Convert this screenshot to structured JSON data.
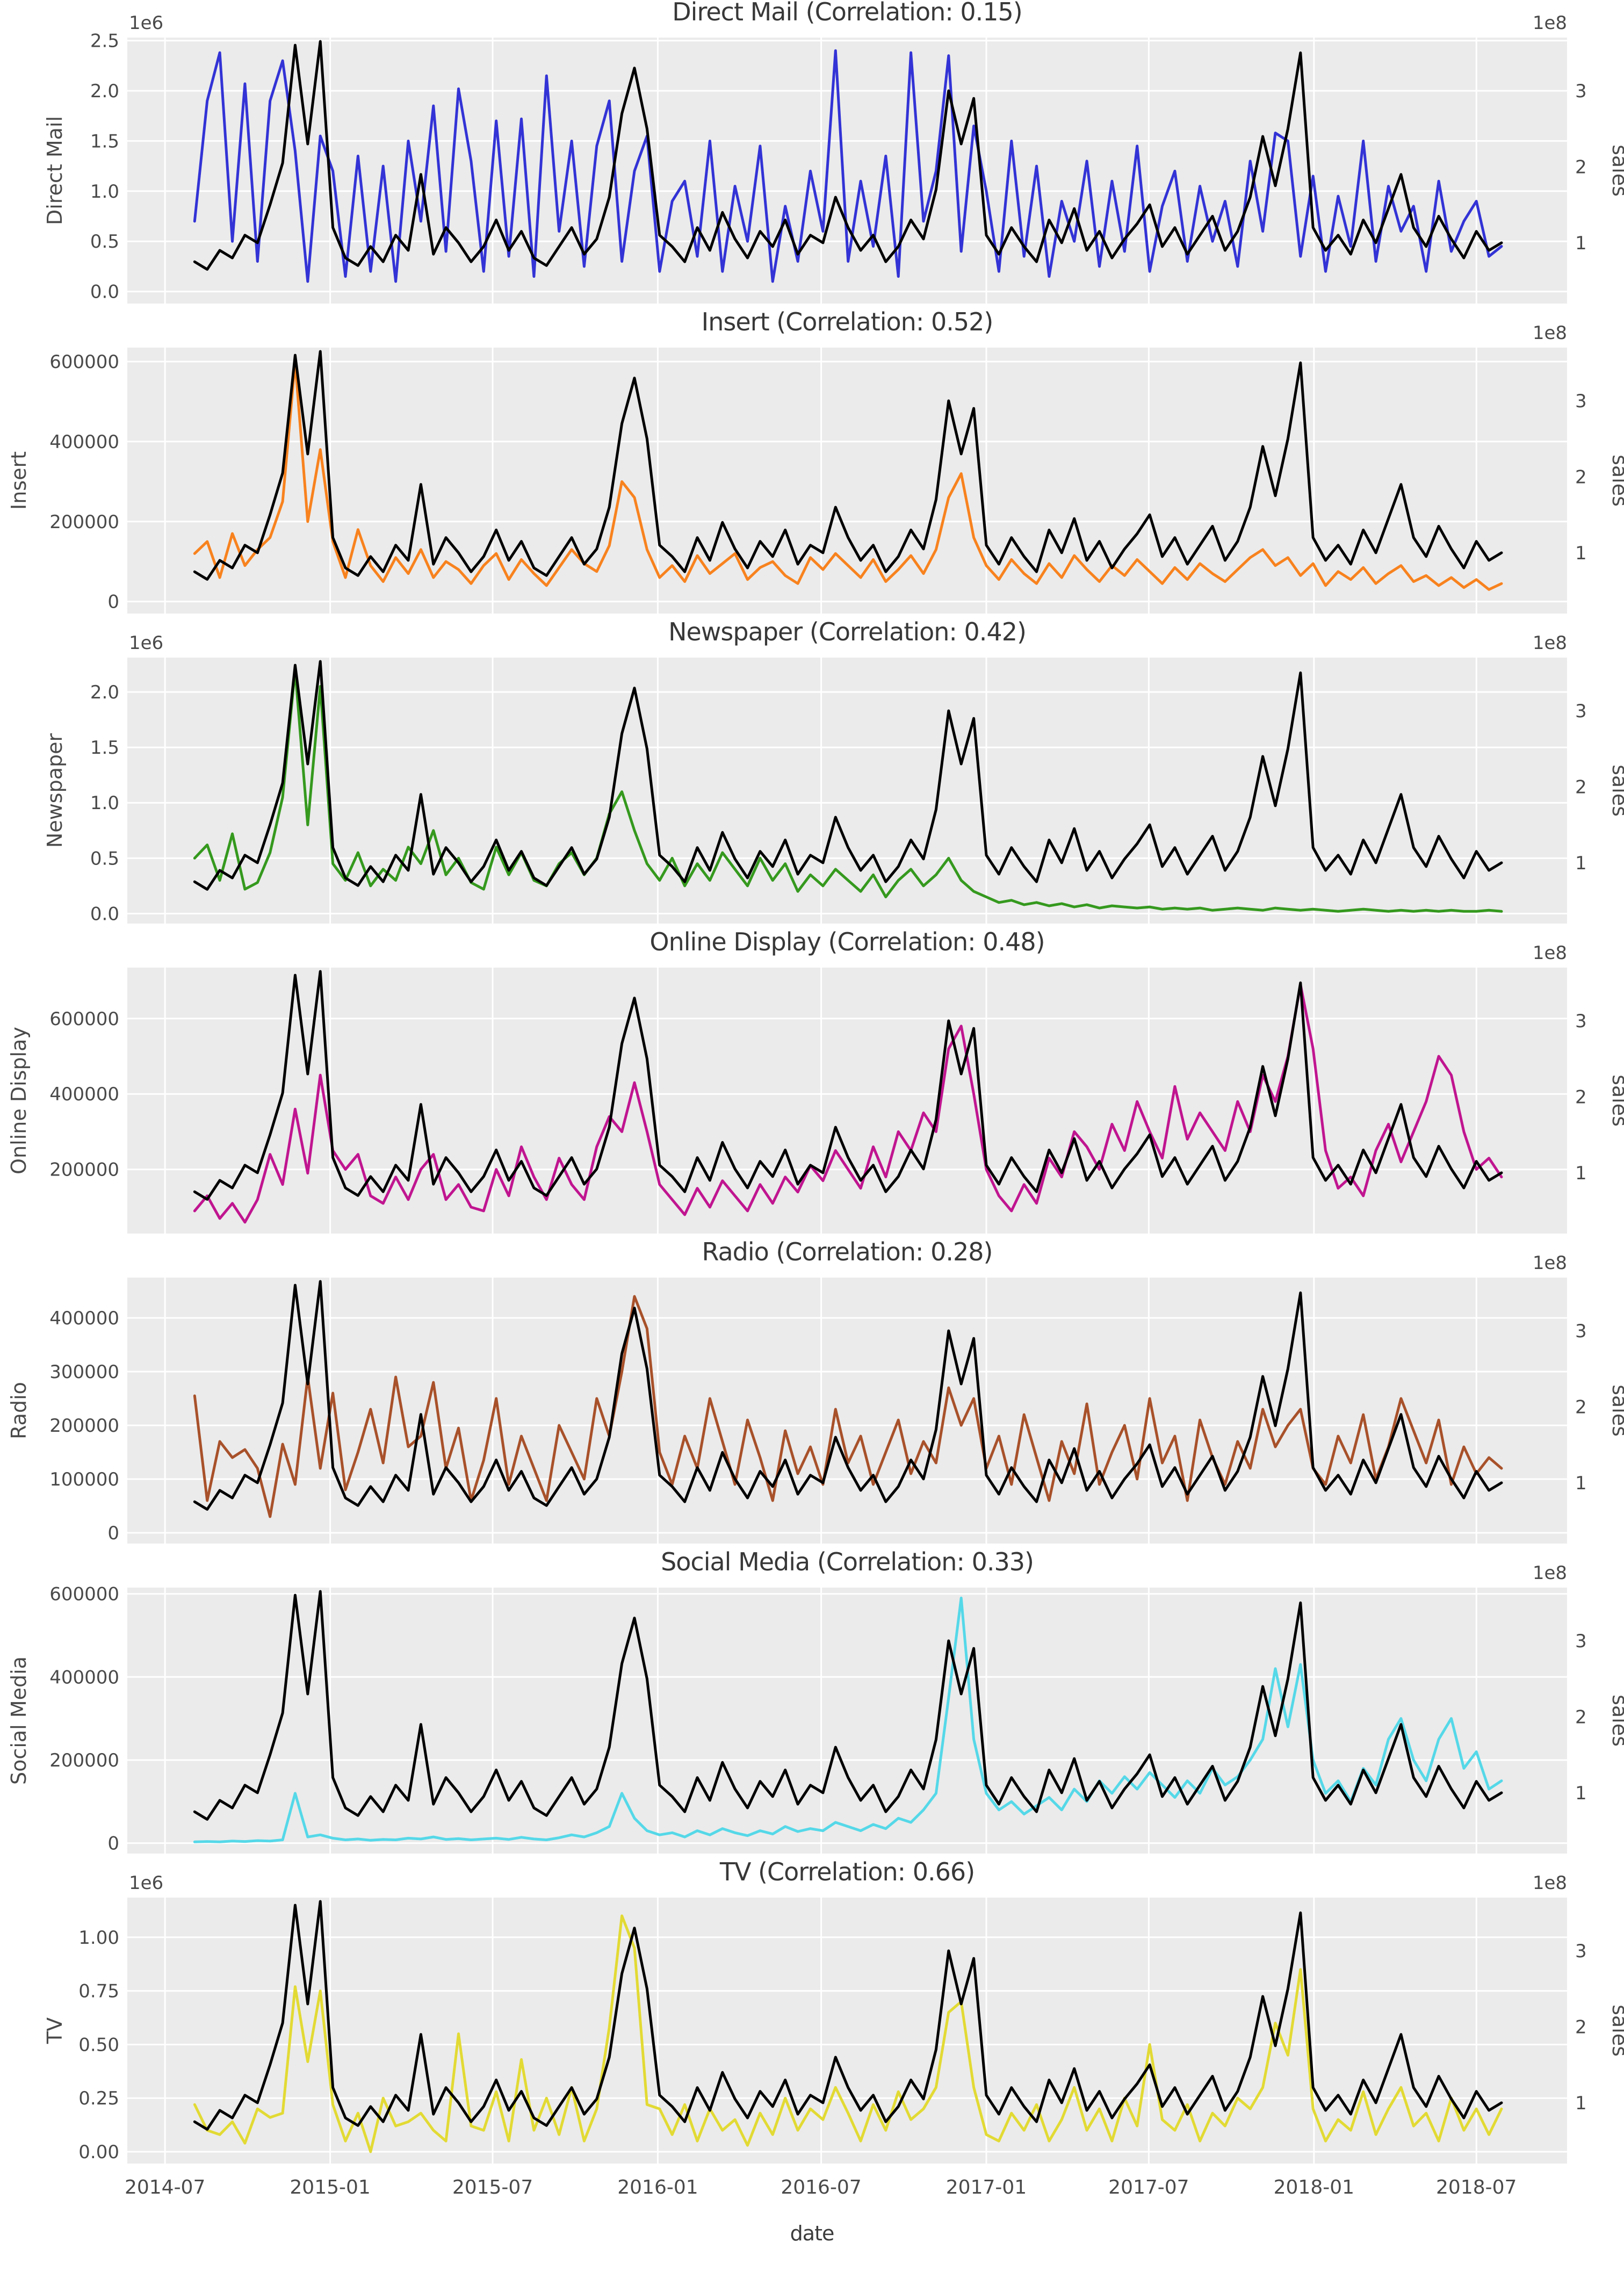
{
  "figure": {
    "background": "#ffffff",
    "axes_background": "#ebebeb",
    "grid_color": "#ffffff",
    "tick_color": "#4a4a4a",
    "title_color": "#383838",
    "sales_line_color": "#000000"
  },
  "chart_data": {
    "type": "line",
    "xlabel": "date",
    "x_axis": {
      "min_date": "2014-05-20",
      "max_date": "2018-10-10",
      "tick_dates": [
        "2014-07-01",
        "2015-01-01",
        "2015-07-01",
        "2016-01-01",
        "2016-07-01",
        "2017-01-01",
        "2017-07-01",
        "2018-01-01",
        "2018-07-01"
      ],
      "tick_labels": [
        "2014-07",
        "2015-01",
        "2015-07",
        "2016-01",
        "2016-07",
        "2017-01",
        "2017-07",
        "2018-01",
        "2018-07"
      ]
    },
    "points": {
      "start_date": "2014-08-03",
      "step_days": 14,
      "count": 105
    },
    "sales_series": {
      "name": "sales",
      "ylabel_right": "sales",
      "color": "#000000",
      "unit": 1000000,
      "ylim": [
        20000000,
        370000000
      ],
      "ytick_labels": [
        "1",
        "2",
        "3"
      ],
      "ytick_values": [
        100000000,
        200000000,
        300000000
      ],
      "offset_label": "1e8",
      "values": [
        75,
        65,
        90,
        80,
        110,
        100,
        150,
        205,
        360,
        230,
        365,
        120,
        80,
        70,
        95,
        75,
        110,
        90,
        190,
        85,
        120,
        100,
        75,
        95,
        130,
        90,
        115,
        80,
        70,
        95,
        120,
        85,
        105,
        160,
        270,
        330,
        250,
        110,
        95,
        75,
        120,
        90,
        140,
        105,
        80,
        115,
        95,
        130,
        85,
        110,
        100,
        160,
        120,
        90,
        110,
        75,
        95,
        130,
        105,
        170,
        300,
        230,
        290,
        110,
        85,
        120,
        95,
        75,
        130,
        100,
        145,
        90,
        115,
        80,
        105,
        125,
        150,
        95,
        120,
        85,
        110,
        135,
        90,
        115,
        160,
        240,
        175,
        250,
        350,
        120,
        90,
        110,
        85,
        130,
        100,
        145,
        190,
        120,
        95,
        135,
        105,
        80,
        115,
        90,
        100
      ]
    },
    "subplots": [
      {
        "title": "Direct Mail (Correlation: 0.15)",
        "ylabel": "Direct Mail",
        "correlation": 0.15,
        "line_color": "#3333d6",
        "unit": 1000000,
        "ylim": [
          -120000,
          2530000
        ],
        "ytick_labels": [
          "0.0",
          "0.5",
          "1.0",
          "1.5",
          "2.0",
          "2.5"
        ],
        "ytick_values": [
          0,
          500000,
          1000000,
          1500000,
          2000000,
          2500000
        ],
        "offset_label": "1e6",
        "values": [
          0.7,
          1.9,
          2.38,
          0.5,
          2.07,
          0.3,
          1.9,
          2.3,
          1.4,
          0.1,
          1.55,
          1.2,
          0.15,
          1.35,
          0.2,
          1.25,
          0.1,
          1.5,
          0.7,
          1.85,
          0.4,
          2.02,
          1.3,
          0.2,
          1.7,
          0.35,
          1.72,
          0.15,
          2.15,
          0.6,
          1.5,
          0.25,
          1.45,
          1.9,
          0.3,
          1.2,
          1.55,
          0.2,
          0.9,
          1.1,
          0.35,
          1.5,
          0.2,
          1.05,
          0.5,
          1.45,
          0.1,
          0.85,
          0.3,
          1.2,
          0.6,
          2.4,
          0.3,
          1.1,
          0.45,
          1.35,
          0.15,
          2.38,
          0.7,
          1.2,
          2.35,
          0.4,
          1.65,
          1.0,
          0.2,
          1.5,
          0.35,
          1.25,
          0.15,
          0.9,
          0.5,
          1.3,
          0.25,
          1.1,
          0.4,
          1.45,
          0.2,
          0.85,
          1.2,
          0.3,
          1.05,
          0.5,
          0.9,
          0.25,
          1.3,
          0.6,
          1.58,
          1.5,
          0.35,
          1.15,
          0.2,
          0.95,
          0.45,
          1.5,
          0.3,
          1.05,
          0.6,
          0.85,
          0.2,
          1.1,
          0.4,
          0.7,
          0.9,
          0.35,
          0.45
        ]
      },
      {
        "title": "Insert (Correlation: 0.52)",
        "ylabel": "Insert",
        "correlation": 0.52,
        "line_color": "#f8821e",
        "unit": 1000,
        "ylim": [
          -30000,
          635000
        ],
        "ytick_labels": [
          "0",
          "200000",
          "400000",
          "600000"
        ],
        "ytick_values": [
          0,
          200000,
          400000,
          600000
        ],
        "offset_label": null,
        "values": [
          120,
          150,
          60,
          170,
          90,
          130,
          160,
          250,
          600,
          200,
          380,
          150,
          60,
          180,
          90,
          50,
          110,
          70,
          130,
          60,
          100,
          80,
          45,
          90,
          120,
          55,
          105,
          70,
          40,
          85,
          130,
          95,
          75,
          140,
          300,
          260,
          130,
          60,
          90,
          50,
          115,
          70,
          95,
          120,
          55,
          85,
          100,
          65,
          45,
          110,
          80,
          120,
          90,
          60,
          105,
          50,
          80,
          115,
          70,
          130,
          260,
          320,
          160,
          90,
          55,
          105,
          70,
          45,
          95,
          60,
          115,
          80,
          50,
          90,
          65,
          105,
          75,
          45,
          85,
          55,
          95,
          70,
          50,
          80,
          110,
          130,
          90,
          110,
          65,
          95,
          40,
          75,
          55,
          85,
          45,
          70,
          90,
          50,
          65,
          40,
          60,
          35,
          55,
          30,
          45
        ]
      },
      {
        "title": "Newspaper (Correlation: 0.42)",
        "ylabel": "Newspaper",
        "correlation": 0.42,
        "line_color": "#35991e",
        "unit": 1000000,
        "ylim": [
          -90000,
          2310000
        ],
        "ytick_labels": [
          "0.0",
          "0.5",
          "1.0",
          "1.5",
          "2.0"
        ],
        "ytick_values": [
          0,
          500000,
          1000000,
          1500000,
          2000000
        ],
        "offset_label": "1e6",
        "values": [
          0.5,
          0.62,
          0.3,
          0.72,
          0.22,
          0.28,
          0.55,
          1.05,
          2.2,
          0.8,
          2.05,
          0.45,
          0.3,
          0.55,
          0.25,
          0.4,
          0.3,
          0.6,
          0.45,
          0.75,
          0.35,
          0.5,
          0.28,
          0.22,
          0.6,
          0.35,
          0.55,
          0.3,
          0.25,
          0.45,
          0.55,
          0.35,
          0.5,
          0.9,
          1.1,
          0.75,
          0.45,
          0.3,
          0.5,
          0.25,
          0.45,
          0.3,
          0.55,
          0.4,
          0.25,
          0.5,
          0.3,
          0.45,
          0.2,
          0.35,
          0.25,
          0.4,
          0.3,
          0.2,
          0.35,
          0.15,
          0.3,
          0.4,
          0.25,
          0.35,
          0.5,
          0.3,
          0.2,
          0.15,
          0.1,
          0.12,
          0.08,
          0.1,
          0.07,
          0.09,
          0.06,
          0.08,
          0.05,
          0.07,
          0.06,
          0.05,
          0.06,
          0.04,
          0.05,
          0.04,
          0.05,
          0.03,
          0.04,
          0.05,
          0.04,
          0.03,
          0.05,
          0.04,
          0.03,
          0.04,
          0.03,
          0.02,
          0.03,
          0.04,
          0.03,
          0.02,
          0.03,
          0.02,
          0.03,
          0.02,
          0.03,
          0.02,
          0.02,
          0.03,
          0.02
        ]
      },
      {
        "title": "Online Display (Correlation: 0.48)",
        "ylabel": "Online Display",
        "correlation": 0.48,
        "line_color": "#c01590",
        "unit": 1000,
        "ylim": [
          30000,
          735000
        ],
        "ytick_labels": [
          "200000",
          "400000",
          "600000"
        ],
        "ytick_values": [
          200000,
          400000,
          600000
        ],
        "offset_label": null,
        "values": [
          90,
          130,
          70,
          110,
          60,
          120,
          240,
          160,
          360,
          190,
          450,
          250,
          200,
          240,
          130,
          110,
          180,
          120,
          200,
          240,
          120,
          160,
          100,
          90,
          200,
          130,
          260,
          180,
          120,
          230,
          160,
          120,
          260,
          340,
          300,
          430,
          300,
          160,
          120,
          80,
          150,
          100,
          170,
          130,
          90,
          160,
          110,
          180,
          140,
          210,
          170,
          250,
          200,
          150,
          260,
          180,
          300,
          250,
          350,
          300,
          520,
          580,
          400,
          200,
          130,
          90,
          160,
          110,
          230,
          180,
          300,
          260,
          200,
          320,
          250,
          380,
          300,
          230,
          420,
          280,
          350,
          300,
          250,
          380,
          300,
          450,
          380,
          500,
          690,
          520,
          250,
          150,
          180,
          130,
          250,
          320,
          220,
          300,
          380,
          500,
          450,
          300,
          200,
          230,
          180
        ]
      },
      {
        "title": "Radio (Correlation: 0.28)",
        "ylabel": "Radio",
        "correlation": 0.28,
        "line_color": "#a8512a",
        "unit": 1000,
        "ylim": [
          -20000,
          475000
        ],
        "ytick_labels": [
          "0",
          "100000",
          "200000",
          "300000",
          "400000"
        ],
        "ytick_values": [
          0,
          100000,
          200000,
          300000,
          400000
        ],
        "offset_label": null,
        "values": [
          255,
          60,
          170,
          140,
          155,
          120,
          30,
          165,
          90,
          290,
          120,
          260,
          80,
          150,
          230,
          130,
          290,
          160,
          180,
          280,
          120,
          195,
          60,
          135,
          250,
          90,
          180,
          120,
          60,
          200,
          150,
          100,
          250,
          180,
          300,
          440,
          380,
          150,
          90,
          180,
          120,
          250,
          170,
          90,
          210,
          140,
          60,
          190,
          110,
          160,
          90,
          230,
          130,
          180,
          90,
          150,
          210,
          110,
          170,
          130,
          270,
          200,
          250,
          120,
          180,
          90,
          220,
          140,
          60,
          170,
          110,
          240,
          90,
          150,
          200,
          100,
          250,
          130,
          180,
          60,
          210,
          140,
          90,
          170,
          120,
          230,
          160,
          200,
          230,
          120,
          90,
          180,
          130,
          220,
          100,
          160,
          250,
          190,
          130,
          210,
          90,
          160,
          110,
          140,
          120
        ]
      },
      {
        "title": "Social Media (Correlation: 0.33)",
        "ylabel": "Social Media",
        "correlation": 0.33,
        "line_color": "#55d8e8",
        "unit": 1000,
        "ylim": [
          -25000,
          615000
        ],
        "ytick_labels": [
          "0",
          "200000",
          "400000",
          "600000"
        ],
        "ytick_values": [
          0,
          200000,
          400000,
          600000
        ],
        "offset_label": null,
        "values": [
          3,
          4,
          3,
          5,
          4,
          6,
          5,
          8,
          120,
          15,
          20,
          12,
          8,
          10,
          7,
          9,
          8,
          12,
          10,
          15,
          9,
          11,
          8,
          10,
          12,
          9,
          14,
          10,
          8,
          13,
          20,
          15,
          25,
          40,
          120,
          60,
          30,
          20,
          25,
          15,
          30,
          20,
          35,
          25,
          18,
          30,
          22,
          40,
          28,
          35,
          30,
          50,
          40,
          30,
          45,
          35,
          60,
          50,
          80,
          120,
          350,
          590,
          250,
          120,
          80,
          100,
          70,
          90,
          110,
          80,
          130,
          100,
          150,
          120,
          160,
          130,
          170,
          140,
          110,
          150,
          120,
          180,
          140,
          160,
          200,
          250,
          420,
          280,
          430,
          200,
          120,
          150,
          100,
          180,
          140,
          250,
          300,
          200,
          150,
          250,
          300,
          180,
          220,
          130,
          150
        ]
      },
      {
        "title": "TV (Correlation: 0.66)",
        "ylabel": "TV",
        "correlation": 0.66,
        "line_color": "#e2da34",
        "unit": 1000000,
        "ylim": [
          -55000,
          1185000
        ],
        "ytick_labels": [
          "0.00",
          "0.25",
          "0.50",
          "0.75",
          "1.00"
        ],
        "ytick_values": [
          0,
          250000,
          500000,
          750000,
          1000000
        ],
        "offset_label": "1e6",
        "values": [
          0.22,
          0.1,
          0.08,
          0.14,
          0.04,
          0.2,
          0.16,
          0.18,
          0.77,
          0.42,
          0.75,
          0.22,
          0.05,
          0.18,
          0.0,
          0.25,
          0.12,
          0.14,
          0.18,
          0.1,
          0.05,
          0.55,
          0.12,
          0.1,
          0.28,
          0.05,
          0.43,
          0.1,
          0.25,
          0.08,
          0.3,
          0.05,
          0.2,
          0.58,
          1.1,
          0.95,
          0.22,
          0.2,
          0.08,
          0.22,
          0.05,
          0.2,
          0.1,
          0.15,
          0.03,
          0.18,
          0.08,
          0.25,
          0.1,
          0.2,
          0.15,
          0.3,
          0.18,
          0.05,
          0.22,
          0.1,
          0.28,
          0.15,
          0.2,
          0.3,
          0.65,
          0.7,
          0.3,
          0.08,
          0.05,
          0.18,
          0.1,
          0.22,
          0.05,
          0.15,
          0.3,
          0.1,
          0.2,
          0.05,
          0.25,
          0.12,
          0.5,
          0.15,
          0.1,
          0.22,
          0.05,
          0.18,
          0.12,
          0.25,
          0.2,
          0.3,
          0.6,
          0.45,
          0.85,
          0.2,
          0.05,
          0.15,
          0.1,
          0.28,
          0.08,
          0.2,
          0.3,
          0.12,
          0.18,
          0.05,
          0.25,
          0.1,
          0.2,
          0.08,
          0.2
        ]
      }
    ]
  }
}
